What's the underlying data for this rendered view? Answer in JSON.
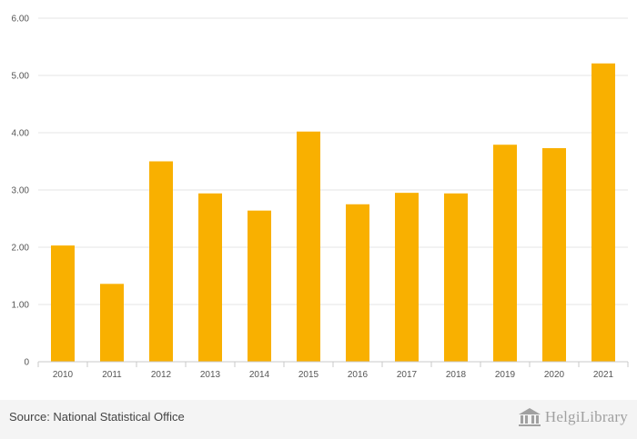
{
  "chart_data": {
    "type": "bar",
    "categories": [
      "2010",
      "2011",
      "2012",
      "2013",
      "2014",
      "2015",
      "2016",
      "2017",
      "2018",
      "2019",
      "2020",
      "2021"
    ],
    "values": [
      2.03,
      1.36,
      3.5,
      2.94,
      2.64,
      4.02,
      2.75,
      2.95,
      2.94,
      3.79,
      3.73,
      5.21
    ],
    "ylim": [
      0,
      6
    ],
    "yticks": [
      0,
      1,
      2,
      3,
      4,
      5,
      6
    ],
    "ytick_labels": [
      "0",
      "1.00",
      "2.00",
      "3.00",
      "4.00",
      "5.00",
      "6.00"
    ],
    "title": "",
    "xlabel": "",
    "ylabel": "",
    "bar_color": "#f9b000",
    "grid": true
  },
  "footer": {
    "source": "Source: National Statistical Office",
    "logo_text": "HelgiLibrary"
  }
}
